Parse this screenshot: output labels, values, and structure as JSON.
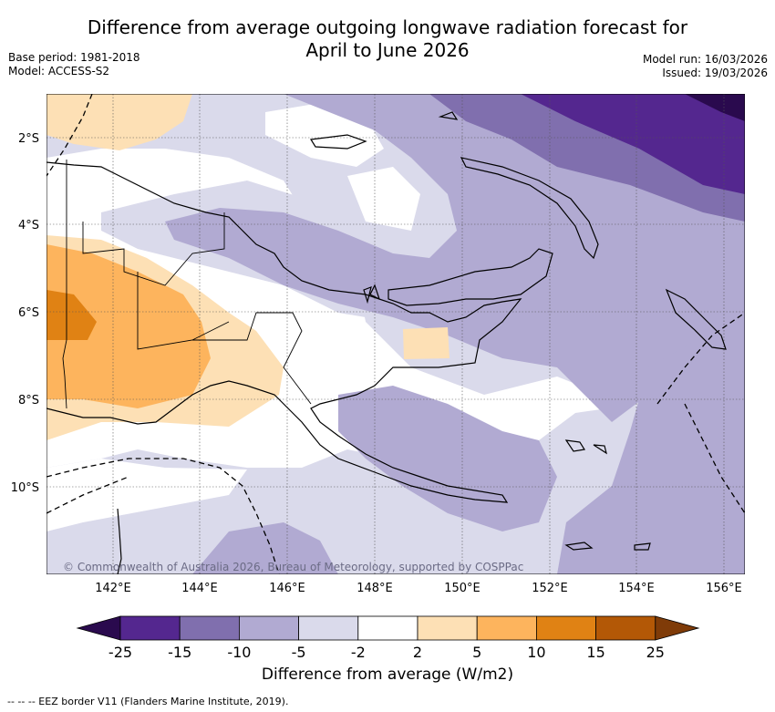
{
  "title_line1": "Difference from average outgoing longwave radiation forecast for",
  "title_line2": "April to June 2026",
  "base_period": "Base period: 1981-2018",
  "model": "Model: ACCESS-S2",
  "model_run": "Model run: 16/03/2026",
  "issued": "Issued: 19/03/2026",
  "copyright": "© Commonwealth of Australia 2026, Bureau of Meteorology, supported by COSPPac",
  "lat_labels": [
    "2°S",
    "4°S",
    "6°S",
    "8°S",
    "10°S"
  ],
  "lon_labels": [
    "142°E",
    "144°E",
    "146°E",
    "148°E",
    "150°E",
    "152°E",
    "154°E",
    "156°E"
  ],
  "colorbar": {
    "ticks": [
      "-25",
      "-15",
      "-10",
      "-5",
      "-2",
      "2",
      "5",
      "10",
      "15",
      "25"
    ],
    "colors": [
      "#2a0a4e",
      "#54278f",
      "#806fae",
      "#b1aad2",
      "#dadaeb",
      "#ffffff",
      "#fde0b5",
      "#fdb45d",
      "#e08214",
      "#b35806",
      "#7f3b08"
    ],
    "label": "Difference from average (W/m2)"
  },
  "footnote": "--  --  -- EEZ border V11 (Flanders Marine Institute, 2019)."
}
